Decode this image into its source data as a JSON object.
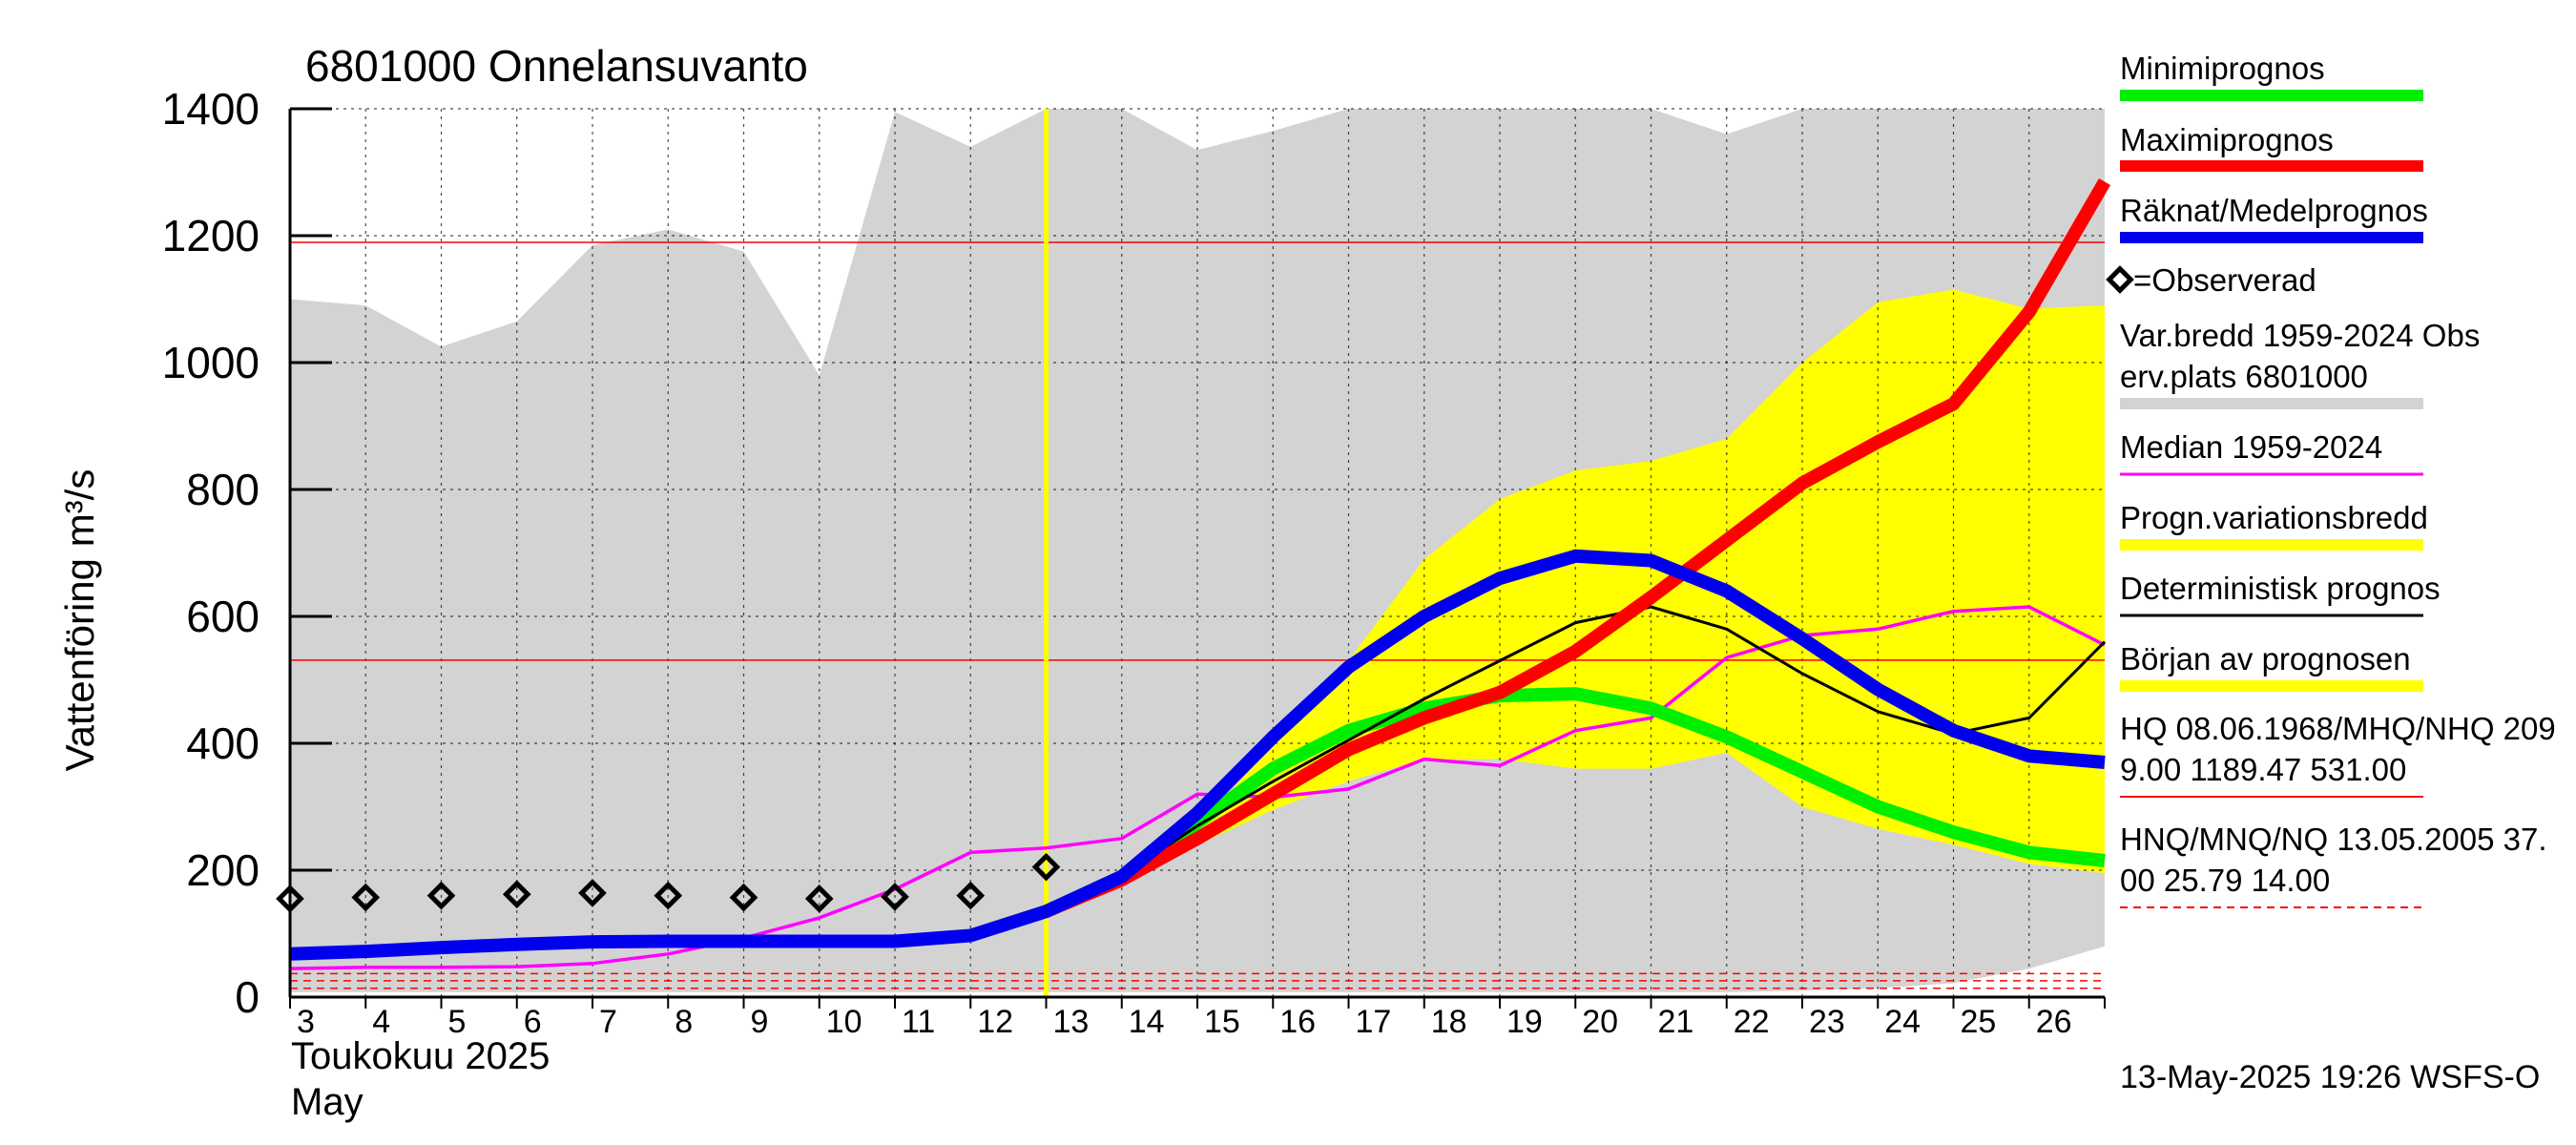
{
  "chart_data": {
    "type": "line",
    "title": "6801000 Onnelansuvanto",
    "ylabel": "Vattenföring m³/s",
    "xlabel_line1": "Toukokuu  2025",
    "xlabel_line2": "May",
    "footer": "13-May-2025 19:26 WSFS-O",
    "ylim": [
      0,
      1400
    ],
    "xlim": [
      3,
      27
    ],
    "yticks": [
      0,
      200,
      400,
      600,
      800,
      1000,
      1200,
      1400
    ],
    "xtick_days": [
      3,
      4,
      5,
      6,
      7,
      8,
      9,
      10,
      11,
      12,
      13,
      14,
      15,
      16,
      17,
      18,
      19,
      20,
      21,
      22,
      23,
      24,
      25,
      26
    ],
    "forecast_start_day": 13,
    "colors": {
      "min": "#00ee00",
      "max": "#ff0000",
      "mean": "#0000ee",
      "median": "#ff00ff",
      "progband": "#ffff00",
      "range": "#d3d3d3",
      "det": "#000000",
      "start": "#ffff00",
      "hq": "#ff0000",
      "nq": "#ff0000"
    },
    "legend": {
      "min": "Minimiprognos",
      "max": "Maximiprognos",
      "mean": "Räknat/Medelprognos",
      "observed": "=Observerad",
      "range_line1": "Var.bredd 1959-2024   Obs",
      "range_line2": "erv.plats 6801000",
      "median": "Median 1959-2024",
      "progband": "Progn.variationsbredd",
      "det": "Deterministisk prognos",
      "start": "Början av prognosen",
      "hq_line1": "HQ 08.06.1968/MHQ/NHQ 209",
      "hq_line2": "9.00 1189.47 531.00",
      "nq_line1": "HNQ/MNQ/NQ 13.05.2005 37.",
      "nq_line2": "00 25.79 14.00"
    },
    "reference_lines": {
      "MHQ": 1189.47,
      "NHQ": 531.0,
      "HNQ": 37.0,
      "MNQ": 25.79,
      "NQ": 14.0
    },
    "range_band": {
      "x": [
        3,
        4,
        5,
        6,
        7,
        8,
        9,
        10,
        11,
        12,
        13,
        14,
        15,
        16,
        17,
        18,
        19,
        20,
        21,
        22,
        23,
        24,
        25,
        26,
        27
      ],
      "upper": [
        1100,
        1090,
        1025,
        1065,
        1185,
        1210,
        1175,
        980,
        1395,
        1340,
        1400,
        1400,
        1335,
        1365,
        1400,
        1400,
        1400,
        1400,
        1400,
        1360,
        1400,
        1400,
        1400,
        1400,
        1400
      ],
      "lower": [
        8,
        8,
        8,
        8,
        8,
        8,
        8,
        8,
        8,
        8,
        8,
        8,
        8,
        8,
        8,
        8,
        8,
        8,
        8,
        8,
        10,
        14,
        22,
        45,
        80
      ]
    },
    "prog_band": {
      "x": [
        13,
        14,
        15,
        16,
        17,
        18,
        19,
        20,
        21,
        22,
        23,
        24,
        25,
        26,
        27
      ],
      "upper": [
        135,
        185,
        265,
        400,
        530,
        690,
        785,
        830,
        845,
        880,
        1000,
        1095,
        1115,
        1085,
        1090
      ],
      "lower": [
        135,
        180,
        240,
        295,
        340,
        375,
        375,
        360,
        360,
        385,
        300,
        265,
        240,
        210,
        195
      ]
    },
    "series": [
      {
        "name": "Minimiprognos",
        "key": "min",
        "x": [
          13,
          14,
          15,
          16,
          17,
          18,
          19,
          20,
          21,
          22,
          23,
          24,
          25,
          26,
          27
        ],
        "values": [
          135,
          190,
          275,
          360,
          420,
          455,
          475,
          478,
          455,
          410,
          355,
          300,
          260,
          228,
          215
        ]
      },
      {
        "name": "Maximiprognos",
        "key": "max",
        "x": [
          13,
          14,
          15,
          16,
          17,
          18,
          19,
          20,
          21,
          22,
          23,
          24,
          25,
          26,
          27
        ],
        "values": [
          135,
          185,
          250,
          320,
          390,
          440,
          480,
          545,
          630,
          720,
          810,
          875,
          935,
          1080,
          1285
        ]
      },
      {
        "name": "Räknat/Medelprognos",
        "key": "mean",
        "x": [
          3,
          4,
          5,
          6,
          7,
          8,
          9,
          10,
          11,
          12,
          13,
          14,
          15,
          16,
          17,
          18,
          19,
          20,
          21,
          22,
          23,
          24,
          25,
          26,
          27
        ],
        "values": [
          68,
          72,
          78,
          83,
          87,
          88,
          88,
          88,
          88,
          97,
          135,
          190,
          290,
          410,
          520,
          600,
          660,
          695,
          688,
          640,
          565,
          485,
          420,
          380,
          370
        ]
      },
      {
        "name": "Median 1959-2024",
        "key": "median",
        "x": [
          3,
          4,
          5,
          6,
          7,
          8,
          9,
          10,
          11,
          12,
          13,
          14,
          15,
          16,
          17,
          18,
          19,
          20,
          21,
          22,
          23,
          24,
          25,
          26,
          27
        ],
        "values": [
          45,
          47,
          47,
          48,
          53,
          68,
          93,
          125,
          170,
          228,
          235,
          250,
          320,
          315,
          328,
          375,
          365,
          420,
          440,
          535,
          570,
          580,
          608,
          615,
          555
        ]
      },
      {
        "name": "Deterministisk prognos",
        "key": "det",
        "x": [
          13,
          14,
          15,
          16,
          17,
          18,
          19,
          20,
          21,
          22,
          23,
          24,
          25,
          26,
          27
        ],
        "values": [
          135,
          190,
          270,
          340,
          405,
          470,
          530,
          590,
          615,
          580,
          510,
          450,
          415,
          440,
          560
        ]
      }
    ],
    "observed": {
      "name": "=Observerad",
      "x": [
        3,
        4,
        5,
        6,
        7,
        8,
        9,
        10,
        11,
        12,
        13
      ],
      "values": [
        155,
        157,
        160,
        162,
        164,
        160,
        157,
        155,
        158,
        160,
        205
      ]
    }
  }
}
